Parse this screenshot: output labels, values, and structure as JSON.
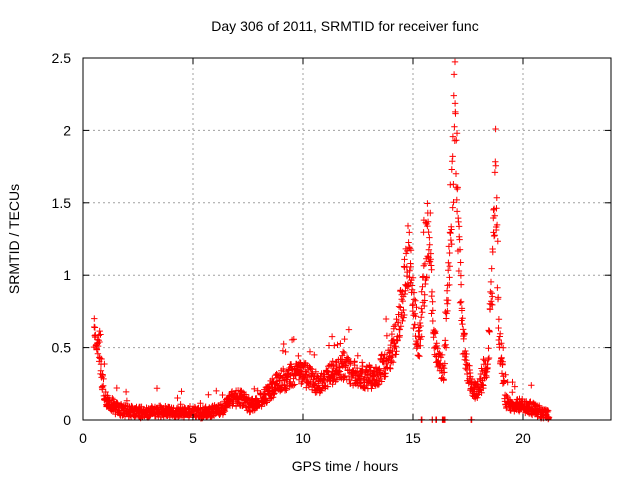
{
  "chart_data": {
    "type": "scatter",
    "title": "Day 306 of 2011, SRMTID for receiver func",
    "xlabel": "GPS time / hours",
    "ylabel": "SRMTID / TECUs",
    "xlim": [
      0,
      24
    ],
    "ylim": [
      0,
      2.5
    ],
    "x_ticks": [
      0,
      5,
      10,
      15,
      20
    ],
    "x_tick_labels": [
      "0",
      "5",
      "10",
      "15",
      "20"
    ],
    "y_ticks": [
      0,
      0.5,
      1,
      1.5,
      2,
      2.5
    ],
    "y_tick_labels": [
      "0",
      "0.5",
      "1",
      "1.5",
      "2",
      "2.5"
    ],
    "grid": true,
    "marker": "+",
    "color": "#ff0000",
    "trend_keypoints": [
      [
        0.5,
        0.65
      ],
      [
        0.6,
        0.58
      ],
      [
        0.75,
        0.45
      ],
      [
        0.9,
        0.25
      ],
      [
        1.0,
        0.15
      ],
      [
        1.2,
        0.12
      ],
      [
        1.6,
        0.07
      ],
      [
        2.5,
        0.05
      ],
      [
        3.5,
        0.06
      ],
      [
        4.5,
        0.05
      ],
      [
        5.5,
        0.05
      ],
      [
        6.3,
        0.07
      ],
      [
        6.8,
        0.15
      ],
      [
        7.2,
        0.15
      ],
      [
        7.6,
        0.1
      ],
      [
        8.2,
        0.15
      ],
      [
        8.8,
        0.25
      ],
      [
        9.4,
        0.3
      ],
      [
        9.8,
        0.35
      ],
      [
        10.2,
        0.3
      ],
      [
        10.7,
        0.25
      ],
      [
        11.2,
        0.3
      ],
      [
        11.8,
        0.38
      ],
      [
        12.3,
        0.32
      ],
      [
        12.8,
        0.3
      ],
      [
        13.3,
        0.3
      ],
      [
        13.8,
        0.4
      ],
      [
        14.2,
        0.55
      ],
      [
        14.5,
        0.8
      ],
      [
        14.8,
        1.15
      ],
      [
        15.05,
        0.75
      ],
      [
        15.3,
        0.5
      ],
      [
        15.6,
        1.2
      ],
      [
        15.75,
        1.35
      ],
      [
        15.9,
        0.65
      ],
      [
        16.1,
        0.4
      ],
      [
        16.4,
        0.35
      ],
      [
        16.7,
        1.2
      ],
      [
        16.9,
        2.2
      ],
      [
        17.05,
        1.3
      ],
      [
        17.25,
        0.6
      ],
      [
        17.5,
        0.3
      ],
      [
        17.8,
        0.2
      ],
      [
        18.1,
        0.25
      ],
      [
        18.4,
        0.4
      ],
      [
        18.6,
        1.0
      ],
      [
        18.75,
        1.85
      ],
      [
        18.9,
        0.6
      ],
      [
        19.2,
        0.12
      ],
      [
        19.6,
        0.1
      ],
      [
        20.0,
        0.1
      ],
      [
        20.4,
        0.08
      ],
      [
        20.8,
        0.05
      ],
      [
        21.2,
        0.03
      ]
    ],
    "bottom_markers_x": [
      15.4,
      15.9,
      16.05,
      16.35,
      16.45,
      17.65
    ]
  }
}
